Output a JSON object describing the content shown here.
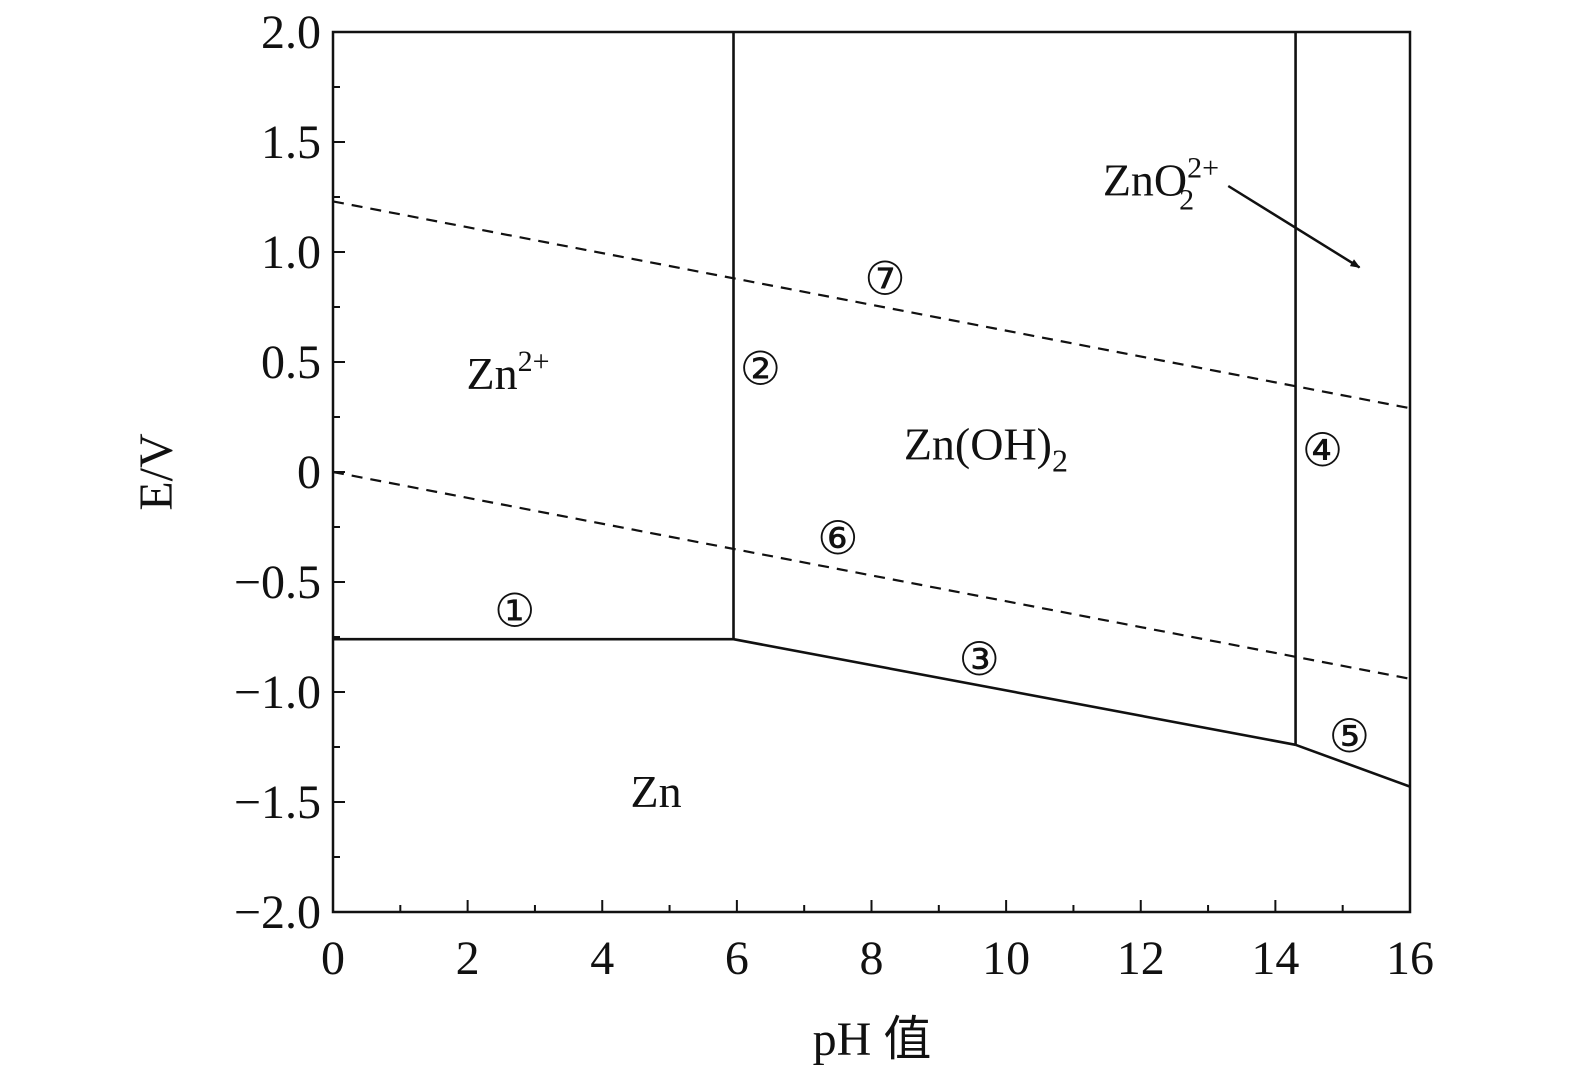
{
  "chart_data": {
    "type": "line",
    "title": "",
    "xlabel": "pH 值",
    "ylabel": "E/V",
    "xlim": [
      0,
      16
    ],
    "ylim": [
      -2.0,
      2.0
    ],
    "grid": false,
    "x_ticks": [
      "0",
      "2",
      "4",
      "6",
      "8",
      "10",
      "12",
      "14",
      "16"
    ],
    "y_ticks": [
      "−2.0",
      "−1.5",
      "−1.0",
      "−0.5",
      "0",
      "0.5",
      "1.0",
      "1.5",
      "2.0"
    ],
    "y_tick_values": [
      -2.0,
      -1.5,
      -1.0,
      -0.5,
      0,
      0.5,
      1.0,
      1.5,
      2.0
    ],
    "x_tick_values": [
      0,
      2,
      4,
      6,
      8,
      10,
      12,
      14,
      16
    ],
    "series": [
      {
        "label": "①",
        "style": "solid",
        "x": [
          0,
          5.95
        ],
        "y": [
          -0.76,
          -0.76
        ]
      },
      {
        "label": "②",
        "style": "solid",
        "x": [
          5.95,
          5.95
        ],
        "y": [
          -0.76,
          2.0
        ]
      },
      {
        "label": "③",
        "style": "solid",
        "x": [
          5.95,
          14.3
        ],
        "y": [
          -0.76,
          -1.24
        ]
      },
      {
        "label": "④",
        "style": "solid",
        "x": [
          14.3,
          14.3
        ],
        "y": [
          -1.24,
          2.0
        ]
      },
      {
        "label": "⑤",
        "style": "solid",
        "x": [
          14.3,
          16
        ],
        "y": [
          -1.24,
          -1.43
        ]
      },
      {
        "label": "⑥",
        "style": "dashed",
        "x": [
          0,
          16
        ],
        "y": [
          0,
          -0.94
        ]
      },
      {
        "label": "⑦",
        "style": "dashed",
        "x": [
          0,
          16
        ],
        "y": [
          1.23,
          0.29
        ]
      }
    ],
    "line_markers": [
      {
        "text": "①",
        "x": 2.7,
        "y": -0.63
      },
      {
        "text": "②",
        "x": 6.35,
        "y": 0.47
      },
      {
        "text": "③",
        "x": 9.6,
        "y": -0.85
      },
      {
        "text": "④",
        "x": 14.7,
        "y": 0.1
      },
      {
        "text": "⑤",
        "x": 15.1,
        "y": -1.2
      },
      {
        "text": "⑥",
        "x": 7.5,
        "y": -0.3
      },
      {
        "text": "⑦",
        "x": 8.2,
        "y": 0.88
      }
    ],
    "regions": [
      {
        "name": "Zn2+",
        "base": "Zn",
        "sup": "2+",
        "x": 2.6,
        "y": 0.45
      },
      {
        "name": "Zn(OH)2",
        "base": "Zn(OH)",
        "sub": "2",
        "x": 9.7,
        "y": 0.13
      },
      {
        "name": "Zn",
        "base": "Zn",
        "x": 4.8,
        "y": -1.45
      },
      {
        "name": "ZnO2 2+",
        "base": "ZnO",
        "sub": "2",
        "sup": "2+",
        "x": 12.3,
        "y": 1.33
      }
    ],
    "annotations": [
      {
        "type": "arrow",
        "from": [
          13.3,
          1.3
        ],
        "to": [
          15.25,
          0.93
        ]
      }
    ]
  }
}
